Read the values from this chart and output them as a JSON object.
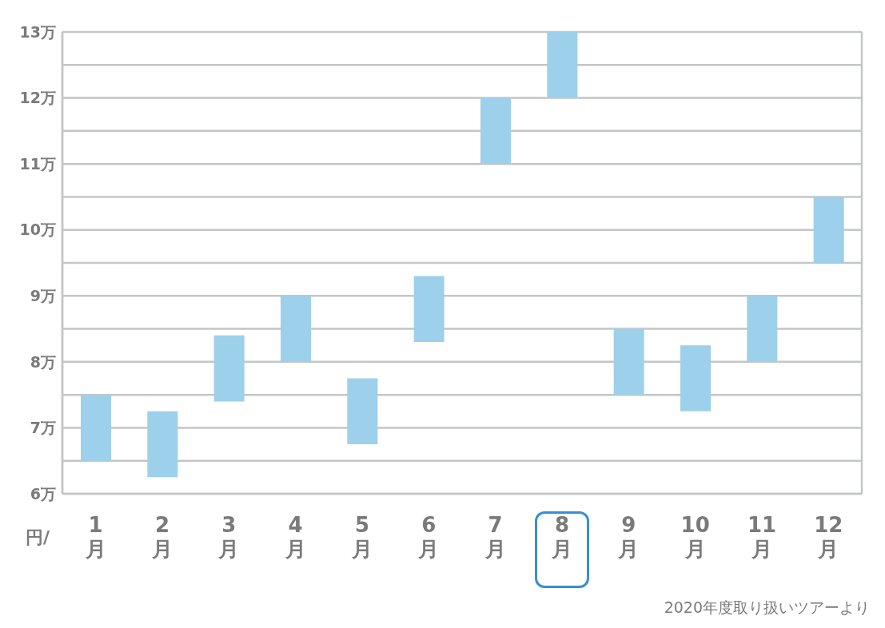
{
  "chart_data": {
    "type": "bar",
    "categories": [
      "1\n月",
      "2\n月",
      "3\n月",
      "4\n月",
      "5\n月",
      "6\n月",
      "7\n月",
      "8\n月",
      "9\n月",
      "10\n月",
      "11\n月",
      "12\n月"
    ],
    "values": [
      1,
      1,
      1,
      1,
      1,
      1,
      1,
      1,
      1,
      1,
      1,
      1
    ],
    "base": [
      6.5,
      6.25,
      7.4,
      8,
      6.75,
      8.3,
      11,
      12,
      7.5,
      7.25,
      8,
      9.5
    ],
    "color": "#9dd0ea",
    "ylim": [
      6,
      13
    ],
    "yticks": [
      {
        "value": 6,
        "label": "6万"
      },
      {
        "value": 6.5,
        "label": null
      },
      {
        "value": 7,
        "label": "7万"
      },
      {
        "value": 7.5,
        "label": null
      },
      {
        "value": 8,
        "label": "8万"
      },
      {
        "value": 8.5,
        "label": null
      },
      {
        "value": 9,
        "label": "9万"
      },
      {
        "value": 9.5,
        "label": null
      },
      {
        "value": 10,
        "label": "10万"
      },
      {
        "value": 10.5,
        "label": null
      },
      {
        "value": 11,
        "label": "11万"
      },
      {
        "value": 11.5,
        "label": null
      },
      {
        "value": 12,
        "label": "12万"
      },
      {
        "value": 12.5,
        "label": null
      },
      {
        "value": 13,
        "label": "13万"
      }
    ],
    "ylabel": "円/",
    "grid": "y",
    "annotations": [
      "2020年度取り扱いツアーより"
    ]
  }
}
